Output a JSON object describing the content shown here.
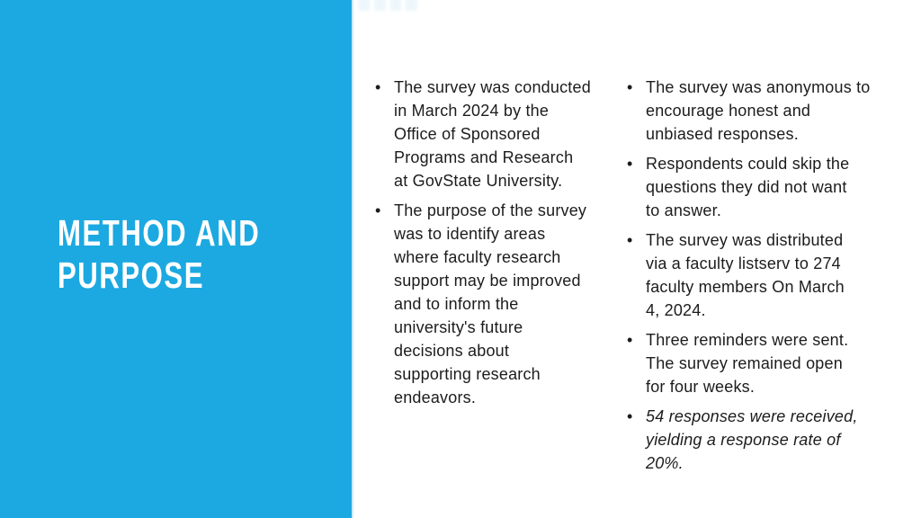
{
  "slide": {
    "accent_color": "#1CA9E1",
    "text_color": "#1c1c1c",
    "bullet_glyph": "•",
    "title": "METHOD AND\nPURPOSE",
    "columns": [
      {
        "bullets": [
          {
            "text": "The survey was conducted\nin March 2024 by the\nOffice of Sponsored\nPrograms and Research\nat GovState University."
          },
          {
            "text": "The purpose of the survey\nwas to identify areas\nwhere faculty research\nsupport may be improved\nand to inform the\nuniversity's future\ndecisions about\nsupporting research\nendeavors."
          }
        ]
      },
      {
        "bullets": [
          {
            "text": "The survey was anonymous to\nencourage honest and\nunbiased responses."
          },
          {
            "text": "Respondents could skip the\nquestions they did not want\nto answer."
          },
          {
            "text": "The survey was distributed\nvia a faculty listserv to 274\nfaculty members On March\n4, 2024."
          },
          {
            "text": "Three reminders were sent.\nThe survey remained open\nfor four weeks."
          },
          {
            "text": "54 responses were received,\nyielding a response rate of\n20%.",
            "style": "italic"
          }
        ]
      }
    ]
  }
}
